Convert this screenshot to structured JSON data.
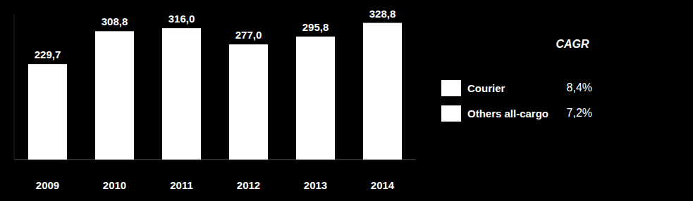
{
  "chart_data": {
    "type": "bar",
    "categories": [
      "2009",
      "2010",
      "2011",
      "2012",
      "2013",
      "2014"
    ],
    "values": [
      229.7,
      308.8,
      316.0,
      277.0,
      295.8,
      328.8
    ],
    "value_labels": [
      "229,7",
      "308,8",
      "316,0",
      "277,0",
      "295,8",
      "328,8"
    ],
    "color": "#ffffff",
    "ylim": [
      0,
      350
    ],
    "data_labels": true,
    "tick_labels": "x",
    "legend": "right",
    "legend_title": "CAGR",
    "legend_items": [
      {
        "name": "Courier",
        "color": "#ffffff",
        "text": "8,4%"
      },
      {
        "name": "Others all-cargo",
        "color": "#ffffff",
        "text": "7,2%"
      }
    ]
  }
}
